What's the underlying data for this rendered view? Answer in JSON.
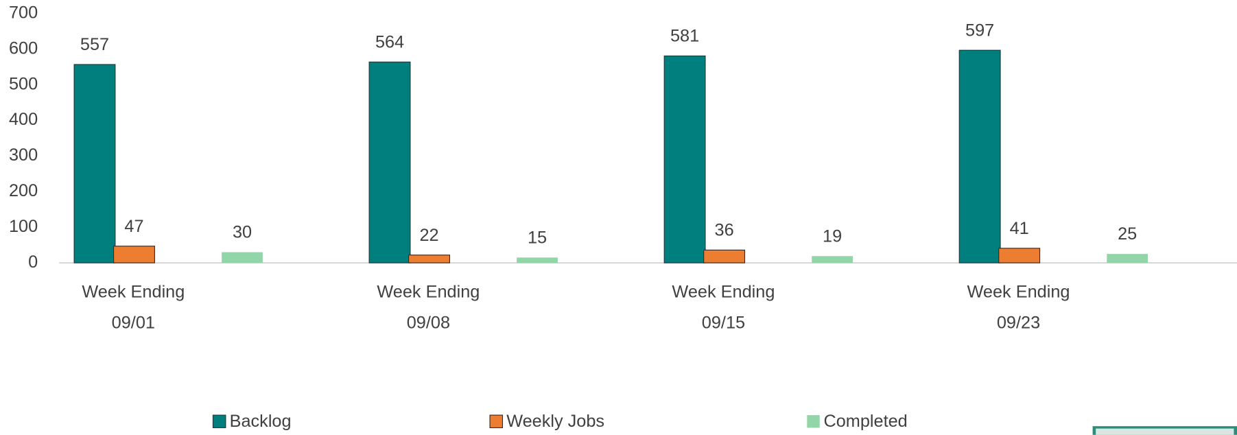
{
  "chart_data": {
    "type": "bar",
    "categories": [
      "Week Ending\n09/01",
      "Week Ending\n09/08",
      "Week Ending\n09/15",
      "Week Ending\n09/23"
    ],
    "series": [
      {
        "name": "Backlog",
        "color": "#007f7f",
        "values": [
          557,
          564,
          581,
          597
        ]
      },
      {
        "name": "Weekly Jobs",
        "color": "#ed7d31",
        "values": [
          47,
          22,
          36,
          41
        ]
      },
      {
        "name": "Completed",
        "color": "#92d5a8",
        "values": [
          30,
          15,
          19,
          25
        ]
      }
    ],
    "ylim": [
      0,
      700
    ],
    "yticks": [
      0,
      100,
      200,
      300,
      400,
      500,
      600,
      700
    ],
    "grid": false,
    "legend": "bottom"
  }
}
